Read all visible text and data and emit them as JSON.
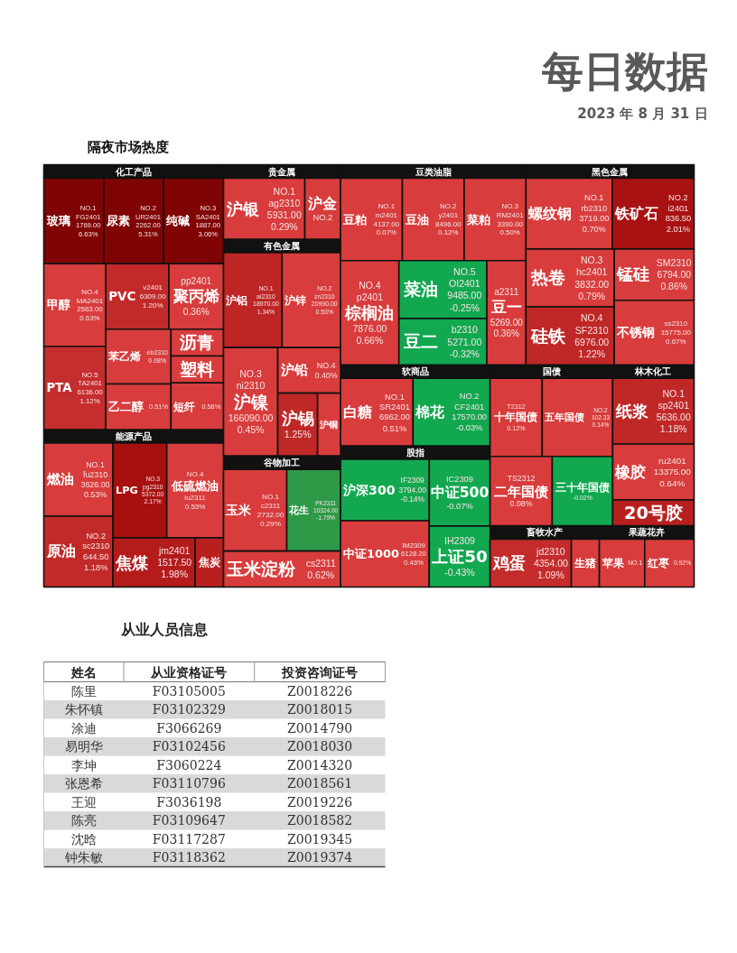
{
  "chart_data": [
    {
      "type": "other",
      "title": "每日数据",
      "subtitle": "2023 年 8 月 31 日",
      "annotations": [
        "隔夜市场热度"
      ]
    },
    {
      "type": "other",
      "title": "化工产品",
      "categories": [
        "玻璃",
        "尿素",
        "纯碱",
        "甲醇",
        "PTA",
        "PVC",
        "聚丙烯",
        "苯乙烯",
        "乙二醇",
        "沥青",
        "塑料",
        "短纤"
      ],
      "colors": [
        "#800404",
        "#800404",
        "#800404",
        "#d83c3c",
        "#c42e2e",
        "#c22a2a",
        "#d83c3c",
        "#d83c3c",
        "#d83c3c",
        "#d83c3c",
        "#d83c3c",
        "#d83c3c"
      ],
      "values": [
        6.63,
        5.31,
        3.06,
        0.63,
        1.12,
        1.2,
        0.36,
        0.08,
        0.51,
        null,
        null,
        0.58
      ],
      "value_labels": [
        "6.63%",
        "5.31%",
        "3.06%",
        "0.63%",
        "1.12%",
        "1.20%",
        "0.36%",
        "0.08%",
        "0.51%",
        null,
        null,
        "0.58%"
      ],
      "annotations": [
        {
          "text": "NO.1",
          "x": "玻璃"
        },
        {
          "text": "FG2401",
          "x": "玻璃"
        },
        {
          "text": "1769.00",
          "x": "玻璃"
        },
        {
          "text": "NO.2",
          "x": "尿素"
        },
        {
          "text": "UR2401",
          "x": "尿素"
        },
        {
          "text": "2262.00",
          "x": "尿素"
        },
        {
          "text": "NO.3",
          "x": "纯碱"
        },
        {
          "text": "SA2401",
          "x": "纯碱"
        },
        {
          "text": "1887.00",
          "x": "纯碱"
        },
        {
          "text": "NO.4",
          "x": "甲醇"
        },
        {
          "text": "MA2401",
          "x": "甲醇"
        },
        {
          "text": "2563.00",
          "x": "甲醇"
        },
        {
          "text": "NO.5",
          "x": "PTA"
        },
        {
          "text": "TA2401",
          "x": "PTA"
        },
        {
          "text": "6136.00",
          "x": "PTA"
        },
        {
          "text": "v2401",
          "x": "PVC"
        },
        {
          "text": "6309.00",
          "x": "PVC"
        },
        {
          "text": "pp2401",
          "x": "聚丙烯"
        },
        {
          "text": "eb2310",
          "x": "苯乙烯"
        }
      ]
    },
    {
      "type": "other",
      "title": "能源产品",
      "categories": [
        "燃油",
        "原油",
        "LPG",
        "低硫燃油",
        "焦煤",
        "焦炭"
      ],
      "colors": [
        "#d83c3c",
        "#c22a2a",
        "#a81010",
        "#d83c3c",
        "#b41c1c",
        "#b82020"
      ],
      "values": [
        0.53,
        1.18,
        2.17,
        0.53,
        1.98,
        null
      ],
      "value_labels": [
        "0.53%",
        "1.18%",
        "2.17%",
        "0.53%",
        "1.98%",
        null
      ],
      "annotations": [
        {
          "text": "NO.1",
          "x": "燃油"
        },
        {
          "text": "fu2310",
          "x": "燃油"
        },
        {
          "text": "3626.00",
          "x": "燃油"
        },
        {
          "text": "NO.2",
          "x": "原油"
        },
        {
          "text": "sc2310",
          "x": "原油"
        },
        {
          "text": "644.50",
          "x": "原油"
        },
        {
          "text": "NO.3",
          "x": "LPG"
        },
        {
          "text": "pg2310",
          "x": "LPG"
        },
        {
          "text": "5372.00",
          "x": "LPG"
        },
        {
          "text": "NO.4",
          "x": "低硫燃油"
        },
        {
          "text": "lu2311",
          "x": "低硫燃油"
        },
        {
          "text": "jm2401",
          "x": "焦煤"
        },
        {
          "text": "1517.50",
          "x": "焦煤"
        }
      ]
    },
    {
      "type": "other",
      "title": "贵金属",
      "categories": [
        "沪银",
        "沪金"
      ],
      "colors": [
        "#d83c3c",
        "#d83c3c"
      ],
      "values": [
        0.29,
        null
      ],
      "value_labels": [
        "0.29%",
        null
      ],
      "annotations": [
        {
          "text": "NO.1",
          "x": "沪银"
        },
        {
          "text": "ag2310",
          "x": "沪银"
        },
        {
          "text": "5931.00",
          "x": "沪银"
        },
        {
          "text": "NO.2",
          "x": "沪金"
        }
      ]
    },
    {
      "type": "other",
      "title": "有色金属",
      "categories": [
        "沪铝",
        "沪锌",
        "沪镍",
        "沪铅",
        "沪锡",
        "沪铜"
      ],
      "colors": [
        "#be2626",
        "#d83c3c",
        "#d83c3c",
        "#d83c3c",
        "#c02828",
        "#d83c3c"
      ],
      "values": [
        1.34,
        0.53,
        0.45,
        0.4,
        1.25,
        null
      ],
      "value_labels": [
        "1.34%",
        "0.53%",
        "0.45%",
        "0.40%",
        "1.25%",
        null
      ],
      "annotations": [
        {
          "text": "NO.1",
          "x": "沪铝"
        },
        {
          "text": "al2310",
          "x": "沪铝"
        },
        {
          "text": "18970.00",
          "x": "沪铝"
        },
        {
          "text": "NO.2",
          "x": "沪锌"
        },
        {
          "text": "zn2310",
          "x": "沪锌"
        },
        {
          "text": "20990.00",
          "x": "沪锌"
        },
        {
          "text": "NO.3",
          "x": "沪镍"
        },
        {
          "text": "ni2310",
          "x": "沪镍"
        },
        {
          "text": "166090.00",
          "x": "沪镍"
        },
        {
          "text": "NO.4",
          "x": "沪铅"
        }
      ]
    },
    {
      "type": "other",
      "title": "谷物加工",
      "categories": [
        "玉米",
        "花生",
        "玉米淀粉"
      ],
      "colors": [
        "#d83c3c",
        "#2e9a48",
        "#d83c3c"
      ],
      "values": [
        0.29,
        -1.79,
        0.62
      ],
      "value_labels": [
        "0.29%",
        "-1.79%",
        "0.62%"
      ],
      "annotations": [
        {
          "text": "NO.1",
          "x": "玉米"
        },
        {
          "text": "c2311",
          "x": "玉米"
        },
        {
          "text": "2732.00",
          "x": "玉米"
        },
        {
          "text": "PK2311",
          "x": "花生"
        },
        {
          "text": "10324.00",
          "x": "花生"
        },
        {
          "text": "cs2311",
          "x": "玉米淀粉"
        }
      ]
    },
    {
      "type": "other",
      "title": "豆类油脂",
      "categories": [
        "豆粕",
        "豆油",
        "菜粕",
        "棕榈油",
        "菜油",
        "豆二",
        "豆一"
      ],
      "colors": [
        "#d83c3c",
        "#d83c3c",
        "#d83c3c",
        "#d83c3c",
        "#12a850",
        "#12a850",
        "#d83c3c"
      ],
      "values": [
        0.07,
        0.12,
        0.5,
        0.66,
        -0.25,
        -0.32,
        0.36
      ],
      "value_labels": [
        "0.07%",
        "0.12%",
        "0.50%",
        "0.66%",
        "-0.25%",
        "-0.32%",
        "0.36%"
      ],
      "annotations": [
        {
          "text": "NO.1",
          "x": "豆粕"
        },
        {
          "text": "m2401",
          "x": "豆粕"
        },
        {
          "text": "4137.00",
          "x": "豆粕"
        },
        {
          "text": "NO.2",
          "x": "豆油"
        },
        {
          "text": "y2401",
          "x": "豆油"
        },
        {
          "text": "8496.00",
          "x": "豆油"
        },
        {
          "text": "NO.3",
          "x": "菜粕"
        },
        {
          "text": "RM2401",
          "x": "菜粕"
        },
        {
          "text": "3390.00",
          "x": "菜粕"
        },
        {
          "text": "NO.4",
          "x": "棕榈油"
        },
        {
          "text": "p2401",
          "x": "棕榈油"
        },
        {
          "text": "7876.00",
          "x": "棕榈油"
        },
        {
          "text": "NO.5",
          "x": "菜油"
        },
        {
          "text": "OI2401",
          "x": "菜油"
        },
        {
          "text": "9485.00",
          "x": "菜油"
        },
        {
          "text": "b2310",
          "x": "豆二"
        },
        {
          "text": "5271.00",
          "x": "豆二"
        },
        {
          "text": "a2311",
          "x": "豆一"
        },
        {
          "text": "5269.00",
          "x": "豆一"
        }
      ]
    },
    {
      "type": "other",
      "title": "黑色金属",
      "categories": [
        "螺纹钢",
        "铁矿石",
        "热卷",
        "硅铁",
        "锰硅",
        "不锈钢"
      ],
      "colors": [
        "#d83c3c",
        "#a81212",
        "#d83c3c",
        "#c02828",
        "#d83c3c",
        "#d83c3c"
      ],
      "values": [
        0.7,
        2.01,
        0.79,
        1.22,
        0.86,
        0.67
      ],
      "value_labels": [
        "0.70%",
        "2.01%",
        "0.79%",
        "1.22%",
        "0.86%",
        "0.67%"
      ],
      "annotations": [
        {
          "text": "NO.1",
          "x": "螺纹钢"
        },
        {
          "text": "rb2310",
          "x": "螺纹钢"
        },
        {
          "text": "3719.00",
          "x": "螺纹钢"
        },
        {
          "text": "NO.2",
          "x": "铁矿石"
        },
        {
          "text": "i2401",
          "x": "铁矿石"
        },
        {
          "text": "836.50",
          "x": "铁矿石"
        },
        {
          "text": "NO.3",
          "x": "热卷"
        },
        {
          "text": "hc2401",
          "x": "热卷"
        },
        {
          "text": "3832.00",
          "x": "热卷"
        },
        {
          "text": "NO.4",
          "x": "硅铁"
        },
        {
          "text": "SF2310",
          "x": "硅铁"
        },
        {
          "text": "6976.00",
          "x": "硅铁"
        },
        {
          "text": "SM2310",
          "x": "锰硅"
        },
        {
          "text": "6794.00",
          "x": "锰硅"
        },
        {
          "text": "ss2310",
          "x": "不锈钢"
        },
        {
          "text": "15775.00",
          "x": "不锈钢"
        }
      ]
    },
    {
      "type": "other",
      "title": "软商品",
      "categories": [
        "白糖",
        "棉花"
      ],
      "colors": [
        "#d83c3c",
        "#12a850"
      ],
      "values": [
        0.51,
        -0.03
      ],
      "value_labels": [
        "0.51%",
        "-0.03%"
      ],
      "annotations": [
        {
          "text": "NO.1",
          "x": "白糖"
        },
        {
          "text": "SR2401",
          "x": "白糖"
        },
        {
          "text": "6962.00",
          "x": "白糖"
        },
        {
          "text": "NO.2",
          "x": "棉花"
        },
        {
          "text": "CF2401",
          "x": "棉花"
        },
        {
          "text": "17570.00",
          "x": "棉花"
        }
      ]
    },
    {
      "type": "other",
      "title": "股指",
      "categories": [
        "沪深300",
        "中证1000",
        "中证500",
        "上证50"
      ],
      "colors": [
        "#12a850",
        "#d83c3c",
        "#12a850",
        "#12a850"
      ],
      "values": [
        -0.14,
        0.43,
        -0.07,
        -0.43
      ],
      "value_labels": [
        "-0.14%",
        "0.43%",
        "-0.07%",
        "-0.43%"
      ],
      "annotations": [
        {
          "text": "IF2309",
          "x": "沪深300"
        },
        {
          "text": "3794.00",
          "x": "沪深300"
        },
        {
          "text": "IM2309",
          "x": "中证1000"
        },
        {
          "text": "6128.20",
          "x": "中证1000"
        },
        {
          "text": "IC2309",
          "x": "中证500"
        },
        {
          "text": "IH2309",
          "x": "上证50"
        }
      ]
    },
    {
      "type": "other",
      "title": "国债",
      "categories": [
        "十年国债",
        "五年国债",
        "二年国债",
        "三十年国债"
      ],
      "colors": [
        "#d83c3c",
        "#d83c3c",
        "#d83c3c",
        "#12a850"
      ],
      "values": [
        0.12,
        0.14,
        0.08,
        -0.02
      ],
      "value_labels": [
        "0.12%",
        "0.14%",
        "0.08%",
        "-0.02%"
      ],
      "annotations": [
        {
          "text": "T2312",
          "x": "十年国债"
        },
        {
          "text": "NO.2",
          "x": "五年国债"
        },
        {
          "text": "102.33",
          "x": "五年国债"
        },
        {
          "text": "TS2312",
          "x": "二年国债"
        }
      ]
    },
    {
      "type": "other",
      "title": "林木化工",
      "categories": [
        "纸浆",
        "橡胶",
        "20号胶"
      ],
      "colors": [
        "#c02828",
        "#d83c3c",
        "#b82020"
      ],
      "values": [
        1.18,
        0.64,
        null
      ],
      "value_labels": [
        "1.18%",
        "0.64%",
        null
      ],
      "annotations": [
        {
          "text": "NO.1",
          "x": "纸浆"
        },
        {
          "text": "sp2401",
          "x": "纸浆"
        },
        {
          "text": "5636.00",
          "x": "纸浆"
        },
        {
          "text": "ru2401",
          "x": "橡胶"
        },
        {
          "text": "13375.00",
          "x": "橡胶"
        }
      ]
    },
    {
      "type": "other",
      "title": "畜牧水产",
      "categories": [
        "鸡蛋",
        "生猪"
      ],
      "colors": [
        "#c42c2c",
        "#d83c3c"
      ],
      "values": [
        1.09,
        null
      ],
      "value_labels": [
        "1.09%",
        null
      ],
      "annotations": [
        {
          "text": "jd2310",
          "x": "鸡蛋"
        },
        {
          "text": "4354.00",
          "x": "鸡蛋"
        }
      ]
    },
    {
      "type": "other",
      "title": "果蔬花卉",
      "categories": [
        "苹果",
        "红枣"
      ],
      "colors": [
        "#d83c3c",
        "#d83c3c"
      ],
      "values": [
        null,
        0.92
      ],
      "value_labels": [
        null,
        "0.92%"
      ],
      "annotations": [
        {
          "text": "NO.1",
          "x": "苹果"
        }
      ]
    },
    {
      "type": "other",
      "title": "从业人员信息",
      "categories": [
        "姓名",
        "从业资格证号",
        "投资咨询证号"
      ],
      "annotations": [
        "陈里",
        "F03105005",
        "Z0018226",
        "朱怀镇",
        "F03102329",
        "Z0018015",
        "涂迪",
        "F3066269",
        "Z0014790",
        "易明华",
        "F03102456",
        "Z0018030",
        "李坤",
        "F3060224",
        "Z0014320",
        "张恩希",
        "F03110796",
        "Z0018561",
        "王迎",
        "F3036198",
        "Z0019226",
        "陈亮",
        "F03109647",
        "Z0018582",
        "沈晗",
        "F03117287",
        "Z0019345",
        "钟朱敏",
        "F03118362",
        "Z0019374"
      ]
    }
  ]
}
